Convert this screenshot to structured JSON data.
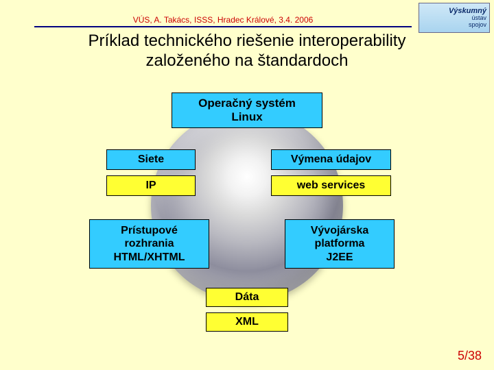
{
  "header": {
    "text": "VÚS, A. Takács, ISSS, Hradec Králové, 3.4. 2006",
    "color": "#cc0000",
    "underline_color": "#000080"
  },
  "logo": {
    "line1": "Výskumný",
    "line2": "ústav",
    "line3": "spojov"
  },
  "title": {
    "line1": "Príklad technického riešenie interoperability",
    "line2": "založeného na štandardoch"
  },
  "diagram": {
    "background_color": "#ffffcc",
    "sphere_gradient_from": "#ffffff",
    "sphere_gradient_to": "#6a6a78",
    "box_border": "#000000",
    "cyan": "#33ccff",
    "yellow": "#ffff33",
    "boxes": {
      "os": {
        "type": "header",
        "color": "cyan",
        "line1": "Operačný systém",
        "line2": "Linux"
      },
      "siete": {
        "type": "header",
        "color": "cyan",
        "label": "Siete"
      },
      "ip": {
        "type": "value",
        "color": "yellow",
        "label": "IP"
      },
      "vymena": {
        "type": "header",
        "color": "cyan",
        "label": "Výmena údajov"
      },
      "websvc": {
        "type": "value",
        "color": "yellow",
        "label": "web services"
      },
      "access": {
        "type": "block",
        "color": "cyan",
        "line1": "Prístupové",
        "line2": "rozhrania",
        "line3": "HTML/XHTML"
      },
      "devpl": {
        "type": "block",
        "color": "cyan",
        "line1": "Vývojárska",
        "line2": "platforma",
        "line3": "J2EE"
      },
      "data": {
        "type": "header",
        "color": "yellow",
        "label": "Dáta"
      },
      "xml": {
        "type": "value",
        "color": "yellow",
        "label": "XML"
      }
    }
  },
  "page": {
    "current": 5,
    "total": 38,
    "display": "5/38",
    "color": "#cc0000"
  }
}
